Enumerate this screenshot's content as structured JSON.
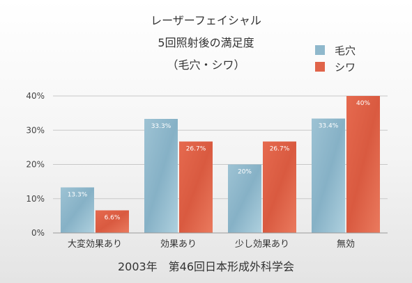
{
  "chart_data": {
    "type": "bar",
    "title": [
      "レーザーフェイシャル",
      "5回照射後の満足度",
      "（毛穴・シワ）"
    ],
    "categories": [
      "大変効果あり",
      "効果あり",
      "少し効果あり",
      "無効"
    ],
    "series": [
      {
        "name": "毛穴",
        "values": [
          13.3,
          33.3,
          20,
          33.4
        ],
        "labels": [
          "13.3%",
          "33.3%",
          "20%",
          "33.4%"
        ],
        "color": "#8fb8cc"
      },
      {
        "name": "シワ",
        "values": [
          6.6,
          26.7,
          26.7,
          40
        ],
        "labels": [
          "6.6%",
          "26.7%",
          "26.7%",
          "40%"
        ],
        "color": "#e0644a"
      }
    ],
    "yticks": [
      "0%",
      "10%",
      "20%",
      "30%",
      "40%"
    ],
    "ylim": [
      0,
      40
    ],
    "grid": true,
    "legend_position": "top-right",
    "xlabel": "",
    "ylabel": ""
  },
  "footer": "2003年　第46回日本形成外科学会"
}
